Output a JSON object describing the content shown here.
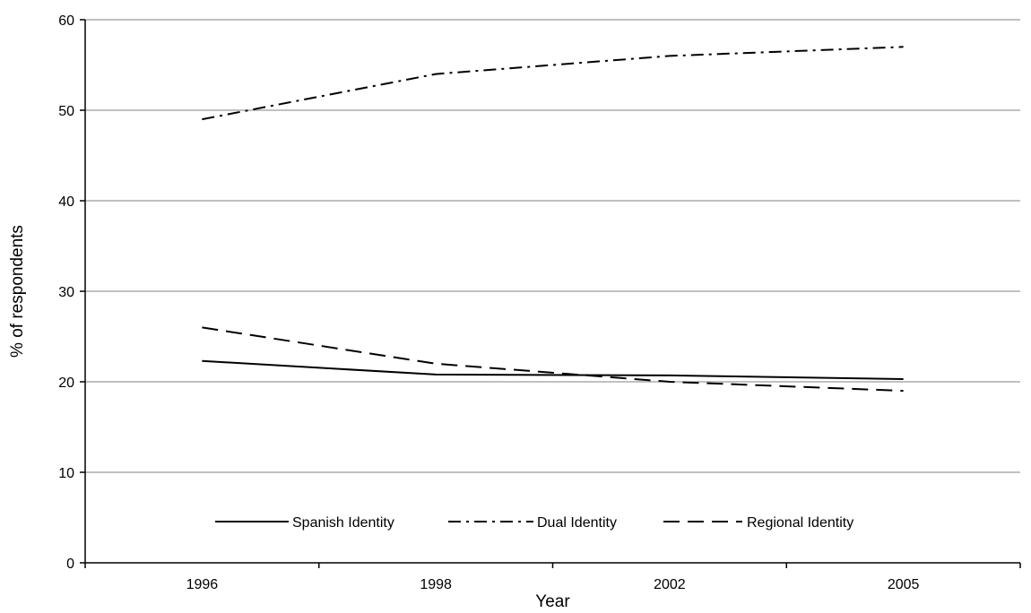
{
  "chart_data": {
    "type": "line",
    "categories": [
      "1996",
      "1998",
      "2002",
      "2005"
    ],
    "xlabel": "Year",
    "ylabel": "% of respondents",
    "ylim": [
      0,
      60
    ],
    "yticks": [
      0,
      10,
      20,
      30,
      40,
      50,
      60
    ],
    "grid": true,
    "legend_position": "bottom-inside",
    "series": [
      {
        "name": "Spanish Identity",
        "values": [
          22.3,
          20.8,
          20.7,
          20.3
        ],
        "style": "solid",
        "color": "#000000"
      },
      {
        "name": "Dual Identity",
        "values": [
          49,
          54,
          56,
          57
        ],
        "style": "dash-dot",
        "color": "#000000"
      },
      {
        "name": "Regional Identity",
        "values": [
          26,
          22,
          20,
          19
        ],
        "style": "dashed",
        "color": "#000000"
      }
    ]
  }
}
